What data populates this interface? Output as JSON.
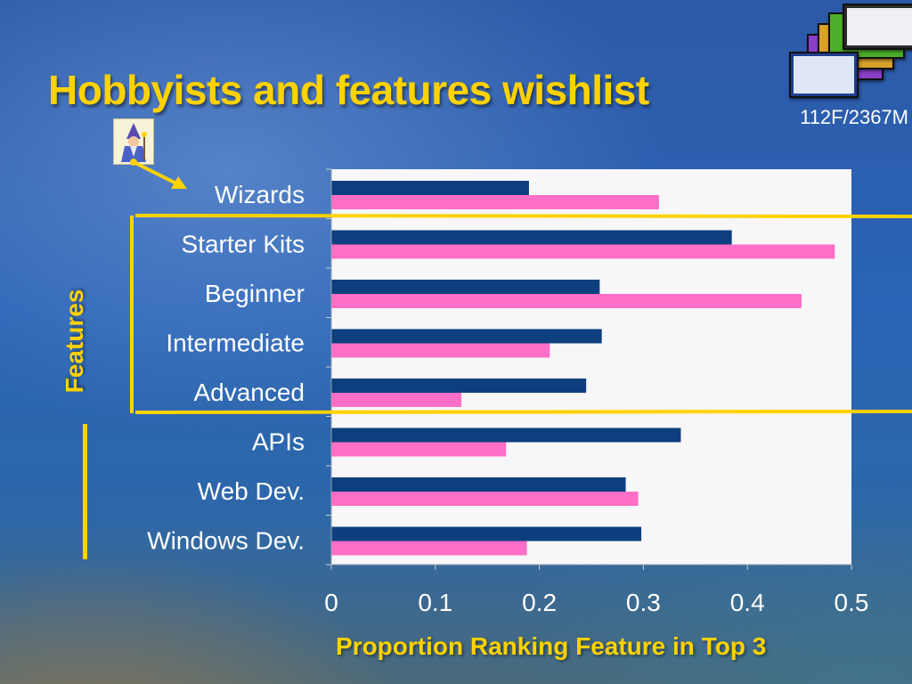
{
  "header": {
    "title": "Hobbyists and features wishlist",
    "session_code": "112F/2367M"
  },
  "annotations": {
    "group_label": "Features"
  },
  "colors": {
    "series_1": "#0d3f7e",
    "series_2": "#ff6ec7",
    "highlight": "#ffd200",
    "plot_bg": "#f7f7f9"
  },
  "icons": {
    "wizard": "wizard-icon",
    "slide_thumbnails": "slide-thumbnails-icon"
  },
  "chart_data": {
    "type": "bar",
    "orientation": "horizontal",
    "title": "",
    "xlabel": "Proportion Ranking Feature in Top 3",
    "ylabel": "",
    "categories": [
      "Wizards",
      "Starter Kits",
      "Beginner",
      "Intermediate",
      "Advanced",
      "APIs",
      "Web Dev.",
      "Windows Dev."
    ],
    "series": [
      {
        "values": [
          0.19,
          0.385,
          0.258,
          0.26,
          0.245,
          0.336,
          0.283,
          0.298
        ]
      },
      {
        "values": [
          0.315,
          0.484,
          0.452,
          0.21,
          0.125,
          0.168,
          0.295,
          0.188
        ]
      }
    ],
    "xlim": [
      0,
      0.5
    ],
    "xticks": [
      "0",
      "0.1",
      "0.2",
      "0.3",
      "0.4",
      "0.5"
    ],
    "grid": false,
    "legend": "none"
  }
}
